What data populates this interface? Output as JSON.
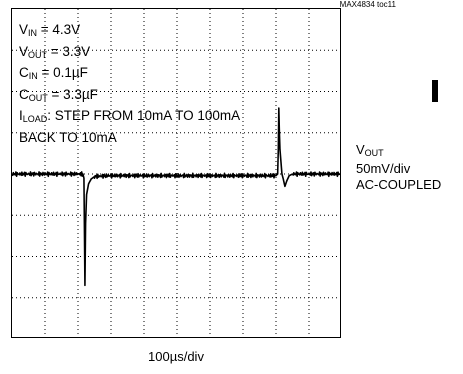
{
  "figure_code": "MAX4834 toc11",
  "conditions": [
    {
      "main": "V",
      "sub": "IN",
      "rest": " = 4.3V"
    },
    {
      "main": "V",
      "sub": "OUT",
      "rest": " = 3.3V"
    },
    {
      "main": "C",
      "sub": "IN",
      "rest": " = 0.1µF"
    },
    {
      "main": "C",
      "sub": "OUT",
      "rest": " = 3.3µF"
    },
    {
      "main": "I",
      "sub": "LOAD",
      "rest": ": STEP FROM 10mA TO 100mA"
    },
    {
      "main": "",
      "sub": "",
      "rest": "BACK TO 10mA"
    }
  ],
  "channel": {
    "name_main": "V",
    "name_sub": "OUT",
    "scale": "50mV/div",
    "coupling": "AC-COUPLED"
  },
  "time_scale": "100µs/div",
  "chart_data": {
    "type": "line",
    "title": "",
    "xlabel": "100µs/div",
    "ylabel": "",
    "grid": true,
    "divisions": {
      "x": 10,
      "y": 8
    },
    "xlim": [
      0,
      1000
    ],
    "ylim": [
      -200,
      200
    ],
    "x_unit": "µs",
    "y_unit": "mV",
    "series": [
      {
        "name": "VOUT",
        "x": [
          0,
          200,
          215,
          218,
          219.5,
          221,
          223,
          226,
          232,
          240,
          250,
          300,
          400,
          500,
          600,
          700,
          800,
          805,
          807,
          808.5,
          810,
          812,
          815,
          818,
          822,
          827,
          833,
          840,
          850,
          900,
          1000
        ],
        "y": [
          0,
          0,
          0,
          -5,
          -70,
          -135,
          -60,
          -25,
          -12,
          -6,
          -3,
          -2,
          -2,
          -2,
          -2,
          -2,
          -2,
          0,
          30,
          80,
          55,
          30,
          15,
          0,
          -6,
          -15,
          -8,
          -2,
          0,
          0,
          0
        ]
      }
    ]
  }
}
